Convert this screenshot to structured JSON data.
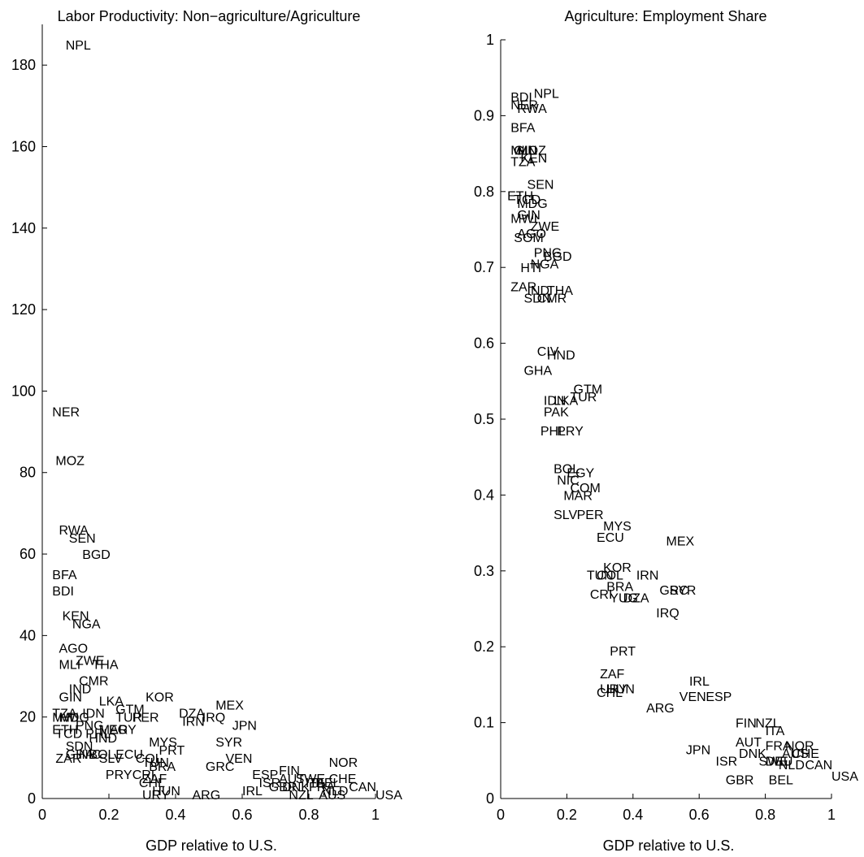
{
  "chart_data": [
    {
      "type": "scatter",
      "title": "Labor Productivity: Non−agriculture/Agriculture",
      "xlabel": "GDP relative to U.S.",
      "ylabel": "",
      "xlim": [
        0,
        1
      ],
      "ylim": [
        0,
        190
      ],
      "xticks": [
        "0",
        "0.2",
        "0.4",
        "0.6",
        "0.8",
        "1"
      ],
      "yticks": [
        "0",
        "20",
        "40",
        "60",
        "80",
        "100",
        "120",
        "140",
        "160",
        "180"
      ],
      "grid": false,
      "marker": "country-code text label",
      "points": [
        {
          "label": "NPL",
          "x": 0.07,
          "y": 185
        },
        {
          "label": "NER",
          "x": 0.03,
          "y": 95
        },
        {
          "label": "MOZ",
          "x": 0.04,
          "y": 83
        },
        {
          "label": "RWA",
          "x": 0.05,
          "y": 66
        },
        {
          "label": "SEN",
          "x": 0.08,
          "y": 64
        },
        {
          "label": "BGD",
          "x": 0.12,
          "y": 60
        },
        {
          "label": "BFA",
          "x": 0.03,
          "y": 55
        },
        {
          "label": "BDI",
          "x": 0.03,
          "y": 51
        },
        {
          "label": "KEN",
          "x": 0.06,
          "y": 45
        },
        {
          "label": "NGA",
          "x": 0.09,
          "y": 43
        },
        {
          "label": "AGO",
          "x": 0.05,
          "y": 37
        },
        {
          "label": "ZWE",
          "x": 0.1,
          "y": 34
        },
        {
          "label": "THA",
          "x": 0.15,
          "y": 33
        },
        {
          "label": "MLI",
          "x": 0.05,
          "y": 33
        },
        {
          "label": "CMR",
          "x": 0.11,
          "y": 29
        },
        {
          "label": "IND",
          "x": 0.08,
          "y": 27
        },
        {
          "label": "GIN",
          "x": 0.05,
          "y": 25
        },
        {
          "label": "LKA",
          "x": 0.17,
          "y": 24
        },
        {
          "label": "KOR",
          "x": 0.31,
          "y": 25
        },
        {
          "label": "IDN",
          "x": 0.12,
          "y": 21
        },
        {
          "label": "GTM",
          "x": 0.22,
          "y": 22
        },
        {
          "label": "TZA",
          "x": 0.03,
          "y": 21
        },
        {
          "label": "MWI",
          "x": 0.03,
          "y": 20
        },
        {
          "label": "MDG",
          "x": 0.05,
          "y": 20
        },
        {
          "label": "PER",
          "x": 0.27,
          "y": 20
        },
        {
          "label": "TUR",
          "x": 0.22,
          "y": 20
        },
        {
          "label": "DZA",
          "x": 0.41,
          "y": 21
        },
        {
          "label": "IRQ",
          "x": 0.48,
          "y": 20
        },
        {
          "label": "IRN",
          "x": 0.42,
          "y": 19
        },
        {
          "label": "MEX",
          "x": 0.52,
          "y": 23
        },
        {
          "label": "JPN",
          "x": 0.57,
          "y": 18
        },
        {
          "label": "PNG",
          "x": 0.1,
          "y": 18
        },
        {
          "label": "ETH",
          "x": 0.03,
          "y": 17
        },
        {
          "label": "TCD",
          "x": 0.04,
          "y": 16
        },
        {
          "label": "PHL",
          "x": 0.13,
          "y": 16
        },
        {
          "label": "HND",
          "x": 0.14,
          "y": 15
        },
        {
          "label": "MAR",
          "x": 0.17,
          "y": 17
        },
        {
          "label": "EGY",
          "x": 0.2,
          "y": 17
        },
        {
          "label": "SYR",
          "x": 0.52,
          "y": 14
        },
        {
          "label": "MYS",
          "x": 0.32,
          "y": 14
        },
        {
          "label": "PRT",
          "x": 0.35,
          "y": 12
        },
        {
          "label": "VEN",
          "x": 0.55,
          "y": 10
        },
        {
          "label": "SDN",
          "x": 0.07,
          "y": 13
        },
        {
          "label": "ZAR",
          "x": 0.04,
          "y": 10
        },
        {
          "label": "GHA",
          "x": 0.07,
          "y": 11
        },
        {
          "label": "NIC",
          "x": 0.11,
          "y": 11
        },
        {
          "label": "BOL",
          "x": 0.14,
          "y": 11
        },
        {
          "label": "SLV",
          "x": 0.17,
          "y": 10
        },
        {
          "label": "ECU",
          "x": 0.22,
          "y": 11
        },
        {
          "label": "COL",
          "x": 0.28,
          "y": 10
        },
        {
          "label": "TUN",
          "x": 0.3,
          "y": 9
        },
        {
          "label": "GRC",
          "x": 0.49,
          "y": 8
        },
        {
          "label": "BRA",
          "x": 0.32,
          "y": 8
        },
        {
          "label": "PRY",
          "x": 0.19,
          "y": 6
        },
        {
          "label": "CRI",
          "x": 0.27,
          "y": 6
        },
        {
          "label": "ZAF",
          "x": 0.3,
          "y": 5
        },
        {
          "label": "CHL",
          "x": 0.29,
          "y": 4
        },
        {
          "label": "URY",
          "x": 0.3,
          "y": 1
        },
        {
          "label": "HUN",
          "x": 0.33,
          "y": 2
        },
        {
          "label": "ARG",
          "x": 0.45,
          "y": 1
        },
        {
          "label": "IRL",
          "x": 0.6,
          "y": 2
        },
        {
          "label": "ESP",
          "x": 0.63,
          "y": 6
        },
        {
          "label": "ISR",
          "x": 0.65,
          "y": 4
        },
        {
          "label": "FIN",
          "x": 0.71,
          "y": 7
        },
        {
          "label": "AUT",
          "x": 0.71,
          "y": 5
        },
        {
          "label": "GBR",
          "x": 0.68,
          "y": 3
        },
        {
          "label": "DNK",
          "x": 0.72,
          "y": 3
        },
        {
          "label": "SWE",
          "x": 0.76,
          "y": 5
        },
        {
          "label": "NZL",
          "x": 0.74,
          "y": 1
        },
        {
          "label": "ITA",
          "x": 0.79,
          "y": 4
        },
        {
          "label": "FRA",
          "x": 0.8,
          "y": 3
        },
        {
          "label": "BEL",
          "x": 0.82,
          "y": 4
        },
        {
          "label": "NLD",
          "x": 0.84,
          "y": 2
        },
        {
          "label": "AUS",
          "x": 0.83,
          "y": 1
        },
        {
          "label": "NOR",
          "x": 0.86,
          "y": 9
        },
        {
          "label": "CHE",
          "x": 0.86,
          "y": 5
        },
        {
          "label": "CAN",
          "x": 0.92,
          "y": 3
        },
        {
          "label": "USA",
          "x": 1.0,
          "y": 1
        }
      ]
    },
    {
      "type": "scatter",
      "title": "Agriculture: Employment Share",
      "xlabel": "GDP relative to U.S.",
      "ylabel": "",
      "xlim": [
        0,
        1
      ],
      "ylim": [
        0,
        1
      ],
      "xticks": [
        "0",
        "0.2",
        "0.4",
        "0.6",
        "0.8",
        "1"
      ],
      "yticks": [
        "0",
        "0.1",
        "0.2",
        "0.3",
        "0.4",
        "0.5",
        "0.6",
        "0.7",
        "0.8",
        "0.9",
        "1"
      ],
      "grid": false,
      "marker": "country-code text label",
      "points": [
        {
          "label": "NPL",
          "x": 0.1,
          "y": 0.93
        },
        {
          "label": "BDI",
          "x": 0.03,
          "y": 0.925
        },
        {
          "label": "NER",
          "x": 0.03,
          "y": 0.915
        },
        {
          "label": "RWA",
          "x": 0.05,
          "y": 0.91
        },
        {
          "label": "BFA",
          "x": 0.03,
          "y": 0.885
        },
        {
          "label": "MLI",
          "x": 0.03,
          "y": 0.855
        },
        {
          "label": "MOZ",
          "x": 0.05,
          "y": 0.855
        },
        {
          "label": "GIN",
          "x": 0.04,
          "y": 0.855
        },
        {
          "label": "KEN",
          "x": 0.06,
          "y": 0.845
        },
        {
          "label": "TZA",
          "x": 0.03,
          "y": 0.84
        },
        {
          "label": "SEN",
          "x": 0.08,
          "y": 0.81
        },
        {
          "label": "ETH",
          "x": 0.02,
          "y": 0.795
        },
        {
          "label": "TCD",
          "x": 0.04,
          "y": 0.79
        },
        {
          "label": "MDG",
          "x": 0.05,
          "y": 0.785
        },
        {
          "label": "MWI",
          "x": 0.03,
          "y": 0.765
        },
        {
          "label": "GIN",
          "x": 0.05,
          "y": 0.77
        },
        {
          "label": "ZWE",
          "x": 0.09,
          "y": 0.755
        },
        {
          "label": "AGO",
          "x": 0.05,
          "y": 0.745
        },
        {
          "label": "SOM",
          "x": 0.04,
          "y": 0.74
        },
        {
          "label": "PNG",
          "x": 0.1,
          "y": 0.72
        },
        {
          "label": "BGD",
          "x": 0.13,
          "y": 0.715
        },
        {
          "label": "NGA",
          "x": 0.09,
          "y": 0.705
        },
        {
          "label": "HTI",
          "x": 0.06,
          "y": 0.7
        },
        {
          "label": "ZAR",
          "x": 0.03,
          "y": 0.675
        },
        {
          "label": "IND",
          "x": 0.08,
          "y": 0.67
        },
        {
          "label": "THA",
          "x": 0.14,
          "y": 0.67
        },
        {
          "label": "SDN",
          "x": 0.07,
          "y": 0.66
        },
        {
          "label": "CMR",
          "x": 0.11,
          "y": 0.66
        },
        {
          "label": "CIV",
          "x": 0.11,
          "y": 0.59
        },
        {
          "label": "HND",
          "x": 0.14,
          "y": 0.585
        },
        {
          "label": "GHA",
          "x": 0.07,
          "y": 0.565
        },
        {
          "label": "GTM",
          "x": 0.22,
          "y": 0.54
        },
        {
          "label": "TUR",
          "x": 0.21,
          "y": 0.53
        },
        {
          "label": "IDN",
          "x": 0.13,
          "y": 0.525
        },
        {
          "label": "LKA",
          "x": 0.16,
          "y": 0.525
        },
        {
          "label": "PAK",
          "x": 0.13,
          "y": 0.51
        },
        {
          "label": "PHL",
          "x": 0.12,
          "y": 0.485
        },
        {
          "label": "PRY",
          "x": 0.17,
          "y": 0.485
        },
        {
          "label": "BOL",
          "x": 0.16,
          "y": 0.435
        },
        {
          "label": "EGY",
          "x": 0.2,
          "y": 0.43
        },
        {
          "label": "NIC",
          "x": 0.17,
          "y": 0.42
        },
        {
          "label": "COM",
          "x": 0.21,
          "y": 0.41
        },
        {
          "label": "MAR",
          "x": 0.19,
          "y": 0.4
        },
        {
          "label": "SLV",
          "x": 0.16,
          "y": 0.375
        },
        {
          "label": "PER",
          "x": 0.23,
          "y": 0.375
        },
        {
          "label": "MYS",
          "x": 0.31,
          "y": 0.36
        },
        {
          "label": "ECU",
          "x": 0.29,
          "y": 0.345
        },
        {
          "label": "MEX",
          "x": 0.5,
          "y": 0.34
        },
        {
          "label": "KOR",
          "x": 0.31,
          "y": 0.305
        },
        {
          "label": "TUN",
          "x": 0.26,
          "y": 0.295
        },
        {
          "label": "COL",
          "x": 0.29,
          "y": 0.295
        },
        {
          "label": "IRN",
          "x": 0.41,
          "y": 0.295
        },
        {
          "label": "BRA",
          "x": 0.32,
          "y": 0.28
        },
        {
          "label": "GRC",
          "x": 0.48,
          "y": 0.275
        },
        {
          "label": "SYR",
          "x": 0.51,
          "y": 0.275
        },
        {
          "label": "CRI",
          "x": 0.27,
          "y": 0.27
        },
        {
          "label": "YUG",
          "x": 0.33,
          "y": 0.265
        },
        {
          "label": "DZA",
          "x": 0.37,
          "y": 0.265
        },
        {
          "label": "IRQ",
          "x": 0.47,
          "y": 0.245
        },
        {
          "label": "PRT",
          "x": 0.33,
          "y": 0.195
        },
        {
          "label": "ZAF",
          "x": 0.3,
          "y": 0.165
        },
        {
          "label": "IRL",
          "x": 0.57,
          "y": 0.155
        },
        {
          "label": "URY",
          "x": 0.3,
          "y": 0.145
        },
        {
          "label": "HUN",
          "x": 0.32,
          "y": 0.145
        },
        {
          "label": "CHL",
          "x": 0.29,
          "y": 0.14
        },
        {
          "label": "VEN",
          "x": 0.54,
          "y": 0.135
        },
        {
          "label": "ESP",
          "x": 0.62,
          "y": 0.135
        },
        {
          "label": "ARG",
          "x": 0.44,
          "y": 0.12
        },
        {
          "label": "FIN",
          "x": 0.71,
          "y": 0.1
        },
        {
          "label": "NZL",
          "x": 0.77,
          "y": 0.1
        },
        {
          "label": "ITA",
          "x": 0.8,
          "y": 0.09
        },
        {
          "label": "AUT",
          "x": 0.71,
          "y": 0.075
        },
        {
          "label": "JPN",
          "x": 0.56,
          "y": 0.065
        },
        {
          "label": "FRA",
          "x": 0.8,
          "y": 0.07
        },
        {
          "label": "NOR",
          "x": 0.86,
          "y": 0.07
        },
        {
          "label": "DNK",
          "x": 0.72,
          "y": 0.06
        },
        {
          "label": "AUS",
          "x": 0.85,
          "y": 0.06
        },
        {
          "label": "CHE",
          "x": 0.88,
          "y": 0.06
        },
        {
          "label": "ISR",
          "x": 0.65,
          "y": 0.05
        },
        {
          "label": "SWE",
          "x": 0.78,
          "y": 0.05
        },
        {
          "label": "DEU",
          "x": 0.8,
          "y": 0.05
        },
        {
          "label": "NLD",
          "x": 0.84,
          "y": 0.045
        },
        {
          "label": "CAN",
          "x": 0.92,
          "y": 0.045
        },
        {
          "label": "GBR",
          "x": 0.68,
          "y": 0.025
        },
        {
          "label": "BEL",
          "x": 0.81,
          "y": 0.025
        },
        {
          "label": "USA",
          "x": 1.0,
          "y": 0.03
        }
      ]
    }
  ]
}
